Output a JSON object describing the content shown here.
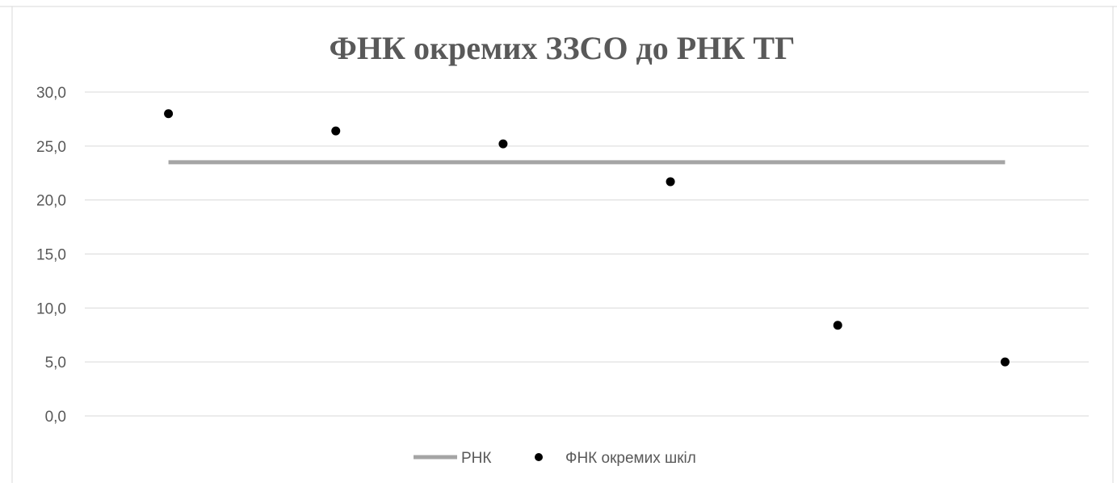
{
  "chart_data": {
    "type": "scatter",
    "title": "ФНК окремих ЗЗСО до РНК ТГ",
    "xlabel": "",
    "ylabel": "",
    "ylim": [
      0,
      30
    ],
    "yticks": [
      "30,0",
      "25,0",
      "20,0",
      "15,0",
      "10,0",
      "5,0",
      "0,0"
    ],
    "grid": true,
    "legend_position": "bottom",
    "series": [
      {
        "name": "РНК",
        "type": "line",
        "color": "#a5a5a5",
        "x": [
          1,
          2,
          3,
          4,
          5,
          6
        ],
        "values": [
          23.5,
          23.5,
          23.5,
          23.5,
          23.5,
          23.5
        ]
      },
      {
        "name": "ФНК окремих шкіл",
        "type": "scatter",
        "color": "#000000",
        "x": [
          1,
          2,
          3,
          4,
          5,
          6
        ],
        "values": [
          28.0,
          26.4,
          25.2,
          21.7,
          8.4,
          5.0
        ]
      }
    ]
  }
}
